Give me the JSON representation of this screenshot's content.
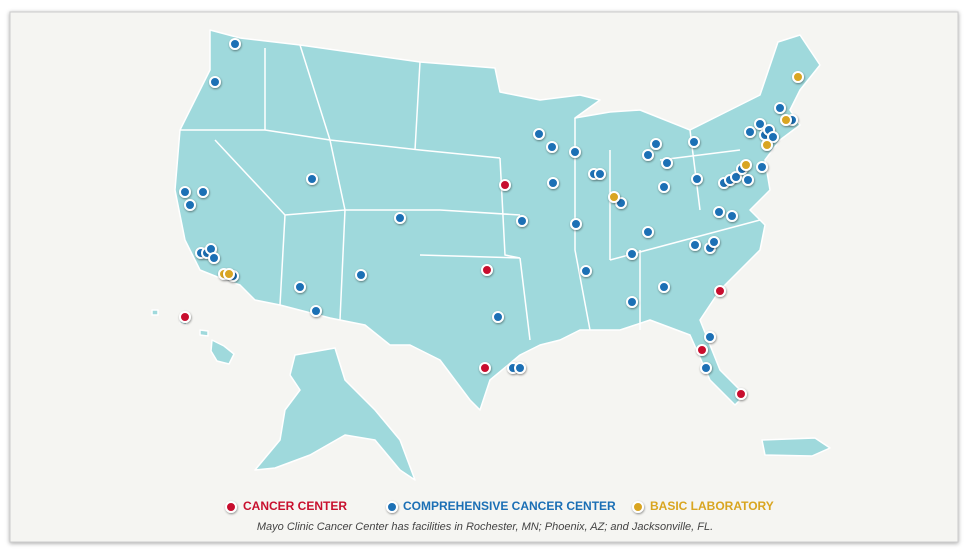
{
  "legend": {
    "items": [
      {
        "label": "CANCER CENTER",
        "color": "#c8102e"
      },
      {
        "label": "COMPREHENSIVE CANCER CENTER",
        "color": "#1b6fb5"
      },
      {
        "label": "BASIC LABORATORY",
        "color": "#d9a520"
      }
    ]
  },
  "caption": "Mayo Clinic Cancer Center has facilities in Rochester, MN; Phoenix, AZ; and Jacksonville, FL."
}
